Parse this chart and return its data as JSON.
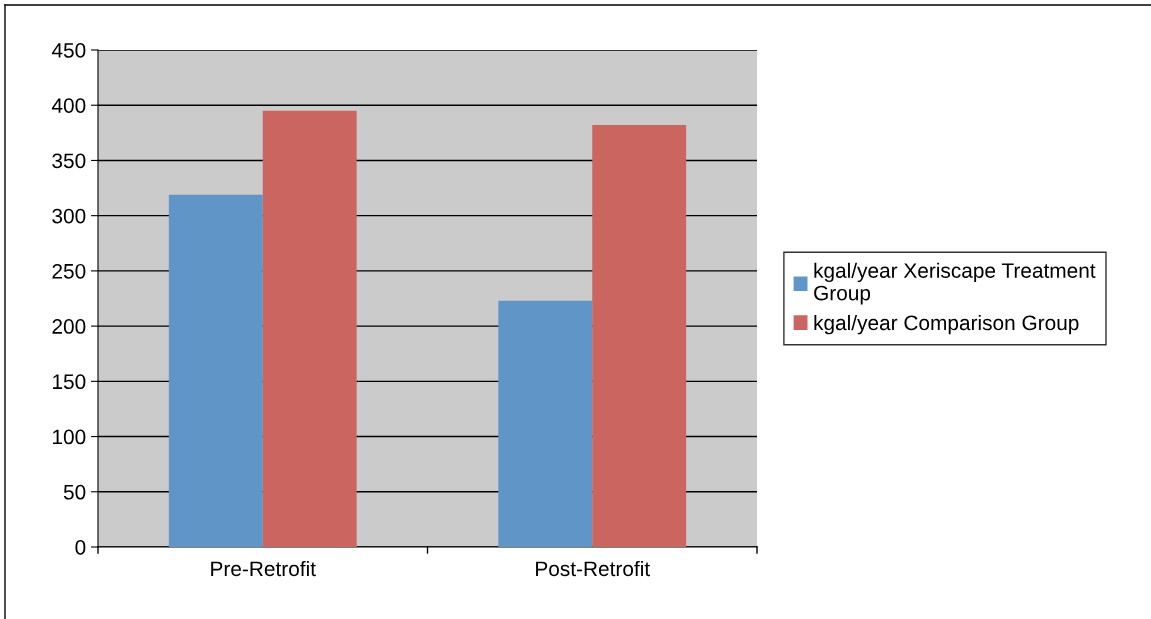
{
  "chart_data": {
    "type": "bar",
    "categories": [
      "Pre-Retrofit",
      "Post-Retrofit"
    ],
    "series": [
      {
        "name": "kgal/year Xeriscape Treatment Group",
        "color": "#6095c8",
        "values": [
          319,
          223
        ]
      },
      {
        "name": "kgal/year Comparison Group",
        "color": "#cb655f",
        "values": [
          395,
          382
        ]
      }
    ],
    "ylim": [
      0,
      450
    ],
    "yticks": [
      0,
      50,
      100,
      150,
      200,
      250,
      300,
      350,
      400,
      450
    ],
    "grid": "y",
    "legend": "right"
  }
}
